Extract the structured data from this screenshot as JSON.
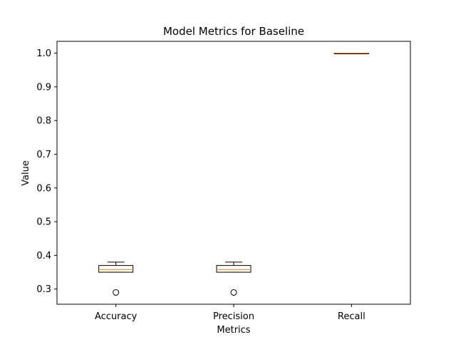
{
  "chart_data": {
    "type": "box",
    "title": "Model Metrics for Baseline",
    "xlabel": "Metrics",
    "ylabel": "Value",
    "ylim": [
      0.255,
      1.035
    ],
    "yticks": [
      0.3,
      0.4,
      0.5,
      0.6,
      0.7,
      0.8,
      0.9,
      1.0
    ],
    "ytick_labels": [
      "0.3",
      "0.4",
      "0.5",
      "0.6",
      "0.7",
      "0.8",
      "0.9",
      "1.0"
    ],
    "grid": false,
    "box_color": "#000000",
    "median_color": "#ff7f0e",
    "categories": [
      "Accuracy",
      "Precision",
      "Recall"
    ],
    "boxes": [
      {
        "whisker_low": 0.35,
        "q1": 0.35,
        "median": 0.358,
        "q3": 0.37,
        "whisker_high": 0.38,
        "outliers": [
          0.29
        ]
      },
      {
        "whisker_low": 0.35,
        "q1": 0.35,
        "median": 0.358,
        "q3": 0.37,
        "whisker_high": 0.38,
        "outliers": [
          0.29
        ]
      },
      {
        "whisker_low": 1.0,
        "q1": 1.0,
        "median": 1.0,
        "q3": 1.0,
        "whisker_high": 1.0,
        "outliers": []
      }
    ]
  }
}
